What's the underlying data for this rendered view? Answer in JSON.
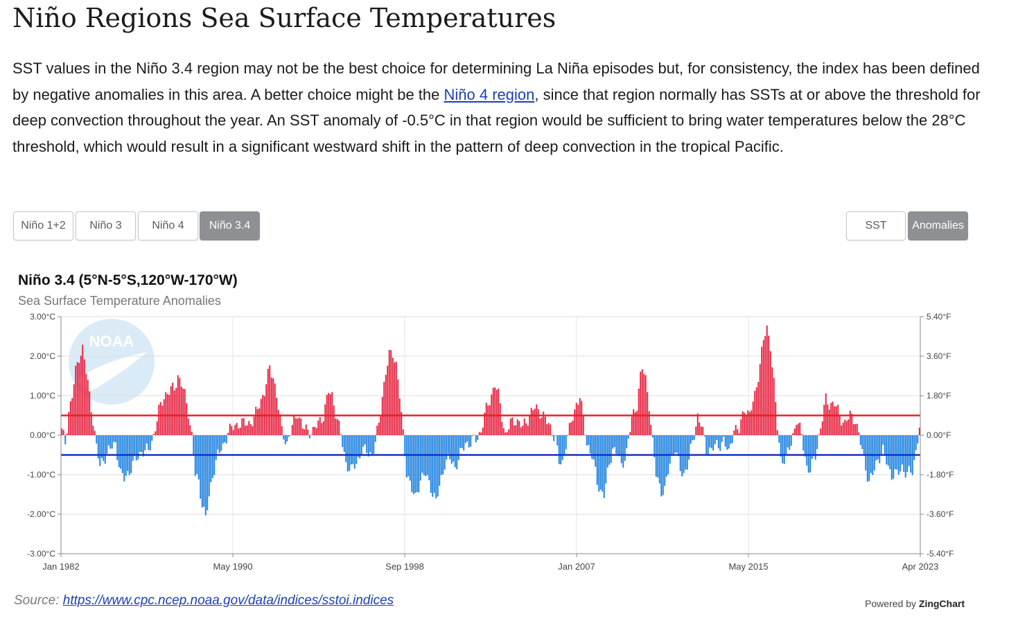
{
  "page": {
    "title": "Niño Regions Sea Surface Temperatures",
    "intro_before": "SST values in the Niño 3.4 region may not be the best choice for determining La Niña episodes but, for consistency, the index has been defined by negative anomalies in this area. A better choice might be the ",
    "intro_link": "Niño 4 region",
    "intro_after": ", since that region normally has SSTs at or above the threshold for deep convection throughout the year. An SST anomaly of -0.5°C in that region would be sufficient to bring water temperatures below the 28°C threshold, which would result in a significant westward shift in the pattern of deep convection in the tropical Pacific."
  },
  "region_buttons": [
    {
      "label": "Niño 1+2",
      "active": false
    },
    {
      "label": "Niño 3",
      "active": false
    },
    {
      "label": "Niño 4",
      "active": false
    },
    {
      "label": "Niño 3.4",
      "active": true
    }
  ],
  "mode_buttons": [
    {
      "label": "SST",
      "active": false
    },
    {
      "label": "Anomalies",
      "active": true
    }
  ],
  "source": {
    "label": "Source:",
    "url_text": "https://www.cpc.ncep.noaa.gov/data/indices/sstoi.indices"
  },
  "powered_by": {
    "prefix": "Powered by",
    "brand": "ZingChart"
  },
  "watermark": {
    "logo_text": "NOAA",
    "icon": "noaa-logo"
  },
  "colors": {
    "positive": "#e8213f",
    "negative": "#1f82e0",
    "el_nino_line": "#e8211d",
    "la_nina_line": "#1531c8"
  },
  "chart_data": {
    "type": "bar",
    "title": "Niño 3.4 (5°N-5°S,120°W-170°W)",
    "subtitle": "Sea Surface Temperature Anomalies",
    "x_start": "Jan 1982",
    "x_end": "Apr 2023",
    "x_tick_labels": [
      "Jan 1982",
      "May 1990",
      "Sep 1998",
      "Jan 2007",
      "May 2015",
      "Apr 2023"
    ],
    "y_unit": "°C",
    "ylim": [
      -3,
      3
    ],
    "y_left_ticks": [
      "3.00°C",
      "2.00°C",
      "1.00°C",
      "0.00°C",
      "-1.00°C",
      "-2.00°C",
      "-3.00°C"
    ],
    "y_right_ticks": [
      "5.40°F",
      "3.60°F",
      "1.80°F",
      "0.00°F",
      "-1.80°F",
      "-3.60°F",
      "-5.40°F"
    ],
    "thresholds": [
      {
        "value": 0.5,
        "color": "#e8211d"
      },
      {
        "value": -0.5,
        "color": "#1531c8"
      }
    ],
    "grid": true,
    "series": [
      {
        "values": []
      }
    ],
    "anomaly_anchors": [
      [
        "1982-01",
        0.1
      ],
      [
        "1982-03",
        -0.2
      ],
      [
        "1982-05",
        0.6
      ],
      [
        "1982-07",
        1.0
      ],
      [
        "1982-09",
        1.6
      ],
      [
        "1982-11",
        2.0
      ],
      [
        "1983-01",
        2.2
      ],
      [
        "1983-03",
        1.6
      ],
      [
        "1983-05",
        1.0
      ],
      [
        "1983-07",
        0.4
      ],
      [
        "1983-09",
        -0.3
      ],
      [
        "1983-11",
        -0.8
      ],
      [
        "1984-01",
        -0.6
      ],
      [
        "1984-04",
        -0.4
      ],
      [
        "1984-08",
        -0.2
      ],
      [
        "1984-11",
        -1.0
      ],
      [
        "1985-01",
        -1.1
      ],
      [
        "1985-04",
        -0.9
      ],
      [
        "1985-08",
        -0.6
      ],
      [
        "1985-11",
        -0.4
      ],
      [
        "1986-03",
        -0.4
      ],
      [
        "1986-06",
        0.0
      ],
      [
        "1986-09",
        0.6
      ],
      [
        "1986-12",
        1.0
      ],
      [
        "1987-03",
        1.1
      ],
      [
        "1987-06",
        1.2
      ],
      [
        "1987-08",
        1.5
      ],
      [
        "1987-10",
        1.3
      ],
      [
        "1987-12",
        1.0
      ],
      [
        "1988-02",
        0.6
      ],
      [
        "1988-04",
        0.0
      ],
      [
        "1988-06",
        -1.0
      ],
      [
        "1988-08",
        -1.2
      ],
      [
        "1988-10",
        -1.7
      ],
      [
        "1988-12",
        -2.1
      ],
      [
        "1989-02",
        -1.6
      ],
      [
        "1989-04",
        -1.0
      ],
      [
        "1989-07",
        -0.5
      ],
      [
        "1989-10",
        -0.3
      ],
      [
        "1990-01",
        0.1
      ],
      [
        "1990-04",
        0.2
      ],
      [
        "1990-07",
        0.3
      ],
      [
        "1990-10",
        0.3
      ],
      [
        "1991-01",
        0.3
      ],
      [
        "1991-04",
        0.4
      ],
      [
        "1991-07",
        0.8
      ],
      [
        "1991-10",
        1.1
      ],
      [
        "1992-01",
        1.7
      ],
      [
        "1992-03",
        1.5
      ],
      [
        "1992-05",
        1.0
      ],
      [
        "1992-08",
        0.1
      ],
      [
        "1992-11",
        -0.2
      ],
      [
        "1993-02",
        0.2
      ],
      [
        "1993-05",
        0.6
      ],
      [
        "1993-08",
        0.2
      ],
      [
        "1993-11",
        0.1
      ],
      [
        "1994-02",
        0.1
      ],
      [
        "1994-05",
        0.3
      ],
      [
        "1994-08",
        0.5
      ],
      [
        "1994-11",
        1.1
      ],
      [
        "1995-01",
        1.0
      ],
      [
        "1995-03",
        0.6
      ],
      [
        "1995-06",
        0.0
      ],
      [
        "1995-09",
        -0.7
      ],
      [
        "1995-12",
        -0.9
      ],
      [
        "1996-03",
        -0.7
      ],
      [
        "1996-06",
        -0.4
      ],
      [
        "1996-09",
        -0.4
      ],
      [
        "1996-12",
        -0.5
      ],
      [
        "1997-02",
        -0.2
      ],
      [
        "1997-04",
        0.3
      ],
      [
        "1997-06",
        1.0
      ],
      [
        "1997-08",
        1.6
      ],
      [
        "1997-10",
        2.0
      ],
      [
        "1997-12",
        2.1
      ],
      [
        "1998-02",
        1.8
      ],
      [
        "1998-04",
        1.0
      ],
      [
        "1998-06",
        0.0
      ],
      [
        "1998-08",
        -0.9
      ],
      [
        "1998-11",
        -1.4
      ],
      [
        "1999-01",
        -1.6
      ],
      [
        "1999-04",
        -1.1
      ],
      [
        "1999-07",
        -1.0
      ],
      [
        "1999-10",
        -1.3
      ],
      [
        "2000-01",
        -1.7
      ],
      [
        "2000-03",
        -1.3
      ],
      [
        "2000-06",
        -0.7
      ],
      [
        "2000-09",
        -0.6
      ],
      [
        "2000-12",
        -0.8
      ],
      [
        "2001-03",
        -0.5
      ],
      [
        "2001-06",
        -0.2
      ],
      [
        "2001-09",
        -0.2
      ],
      [
        "2001-12",
        -0.1
      ],
      [
        "2002-03",
        0.1
      ],
      [
        "2002-05",
        0.5
      ],
      [
        "2002-08",
        0.9
      ],
      [
        "2002-11",
        1.3
      ],
      [
        "2003-01",
        1.0
      ],
      [
        "2003-03",
        0.5
      ],
      [
        "2003-05",
        0.0
      ],
      [
        "2003-08",
        0.3
      ],
      [
        "2003-11",
        0.4
      ],
      [
        "2004-03",
        0.2
      ],
      [
        "2004-07",
        0.5
      ],
      [
        "2004-10",
        0.7
      ],
      [
        "2005-01",
        0.6
      ],
      [
        "2005-04",
        0.4
      ],
      [
        "2005-07",
        0.2
      ],
      [
        "2005-10",
        -0.1
      ],
      [
        "2005-12",
        -0.7
      ],
      [
        "2006-02",
        -0.7
      ],
      [
        "2006-04",
        -0.2
      ],
      [
        "2006-07",
        0.3
      ],
      [
        "2006-10",
        0.8
      ],
      [
        "2006-12",
        1.0
      ],
      [
        "2007-02",
        0.4
      ],
      [
        "2007-04",
        -0.2
      ],
      [
        "2007-07",
        -0.5
      ],
      [
        "2007-10",
        -1.2
      ],
      [
        "2007-12",
        -1.4
      ],
      [
        "2008-02",
        -1.5
      ],
      [
        "2008-04",
        -1.0
      ],
      [
        "2008-07",
        -0.3
      ],
      [
        "2008-10",
        -0.5
      ],
      [
        "2008-12",
        -0.8
      ],
      [
        "2009-03",
        -0.4
      ],
      [
        "2009-06",
        0.4
      ],
      [
        "2009-09",
        0.8
      ],
      [
        "2009-11",
        1.5
      ],
      [
        "2009-12",
        1.7
      ],
      [
        "2010-02",
        1.4
      ],
      [
        "2010-04",
        0.8
      ],
      [
        "2010-06",
        -0.2
      ],
      [
        "2010-08",
        -1.0
      ],
      [
        "2010-11",
        -1.4
      ],
      [
        "2011-01",
        -1.4
      ],
      [
        "2011-04",
        -0.7
      ],
      [
        "2011-07",
        -0.3
      ],
      [
        "2011-10",
        -0.9
      ],
      [
        "2011-12",
        -1.0
      ],
      [
        "2012-03",
        -0.6
      ],
      [
        "2012-06",
        0.0
      ],
      [
        "2012-08",
        0.5
      ],
      [
        "2012-10",
        0.3
      ],
      [
        "2013-01",
        -0.4
      ],
      [
        "2013-05",
        -0.3
      ],
      [
        "2013-08",
        -0.3
      ],
      [
        "2013-11",
        -0.1
      ],
      [
        "2014-02",
        -0.5
      ],
      [
        "2014-05",
        0.2
      ],
      [
        "2014-08",
        0.1
      ],
      [
        "2014-11",
        0.7
      ],
      [
        "2015-02",
        0.5
      ],
      [
        "2015-05",
        1.0
      ],
      [
        "2015-08",
        1.8
      ],
      [
        "2015-10",
        2.4
      ],
      [
        "2015-12",
        2.7
      ],
      [
        "2016-02",
        2.3
      ],
      [
        "2016-04",
        1.3
      ],
      [
        "2016-06",
        0.2
      ],
      [
        "2016-08",
        -0.6
      ],
      [
        "2016-11",
        -0.6
      ],
      [
        "2017-02",
        -0.2
      ],
      [
        "2017-05",
        0.4
      ],
      [
        "2017-08",
        0.0
      ],
      [
        "2017-11",
        -0.8
      ],
      [
        "2018-01",
        -0.9
      ],
      [
        "2018-04",
        -0.5
      ],
      [
        "2018-07",
        0.2
      ],
      [
        "2018-10",
        0.9
      ],
      [
        "2018-12",
        0.8
      ],
      [
        "2019-03",
        0.8
      ],
      [
        "2019-06",
        0.5
      ],
      [
        "2019-09",
        0.3
      ],
      [
        "2019-12",
        0.5
      ],
      [
        "2020-03",
        0.4
      ],
      [
        "2020-06",
        -0.2
      ],
      [
        "2020-09",
        -0.8
      ],
      [
        "2020-11",
        -1.2
      ],
      [
        "2021-01",
        -1.0
      ],
      [
        "2021-04",
        -0.6
      ],
      [
        "2021-07",
        -0.4
      ],
      [
        "2021-10",
        -0.8
      ],
      [
        "2021-12",
        -1.0
      ],
      [
        "2022-03",
        -1.0
      ],
      [
        "2022-06",
        -0.8
      ],
      [
        "2022-09",
        -1.0
      ],
      [
        "2022-12",
        -0.9
      ],
      [
        "2023-02",
        -0.4
      ],
      [
        "2023-03",
        -0.1
      ],
      [
        "2023-04",
        0.2
      ]
    ]
  }
}
